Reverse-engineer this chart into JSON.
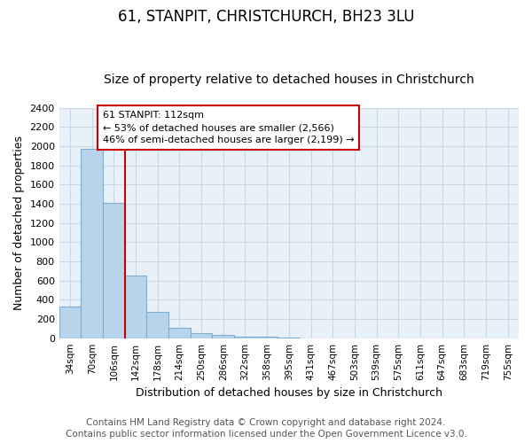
{
  "title": "61, STANPIT, CHRISTCHURCH, BH23 3LU",
  "subtitle": "Size of property relative to detached houses in Christchurch",
  "xlabel": "Distribution of detached houses by size in Christchurch",
  "ylabel": "Number of detached properties",
  "bar_labels": [
    "34sqm",
    "70sqm",
    "106sqm",
    "142sqm",
    "178sqm",
    "214sqm",
    "250sqm",
    "286sqm",
    "322sqm",
    "358sqm",
    "395sqm",
    "431sqm",
    "467sqm",
    "503sqm",
    "539sqm",
    "575sqm",
    "611sqm",
    "647sqm",
    "683sqm",
    "719sqm",
    "755sqm"
  ],
  "bar_values": [
    325,
    1975,
    1410,
    650,
    275,
    105,
    50,
    30,
    20,
    15,
    10,
    0,
    0,
    0,
    0,
    0,
    0,
    0,
    0,
    0,
    0
  ],
  "bar_color": "#b8d4ea",
  "bar_edge_color": "#7bafd4",
  "vline_x_index": 2,
  "vline_color": "#cc0000",
  "annotation_text": "61 STANPIT: 112sqm\n← 53% of detached houses are smaller (2,566)\n46% of semi-detached houses are larger (2,199) →",
  "annotation_box_color": "#ffffff",
  "annotation_box_edge": "#cc0000",
  "ylim": [
    0,
    2400
  ],
  "yticks": [
    0,
    200,
    400,
    600,
    800,
    1000,
    1200,
    1400,
    1600,
    1800,
    2000,
    2200,
    2400
  ],
  "footer_line1": "Contains HM Land Registry data © Crown copyright and database right 2024.",
  "footer_line2": "Contains public sector information licensed under the Open Government Licence v3.0.",
  "title_fontsize": 12,
  "subtitle_fontsize": 10,
  "footer_fontsize": 7.5,
  "bg_color": "#ffffff",
  "axes_bg_color": "#e8f0f8",
  "grid_color": "#c8d8e8"
}
